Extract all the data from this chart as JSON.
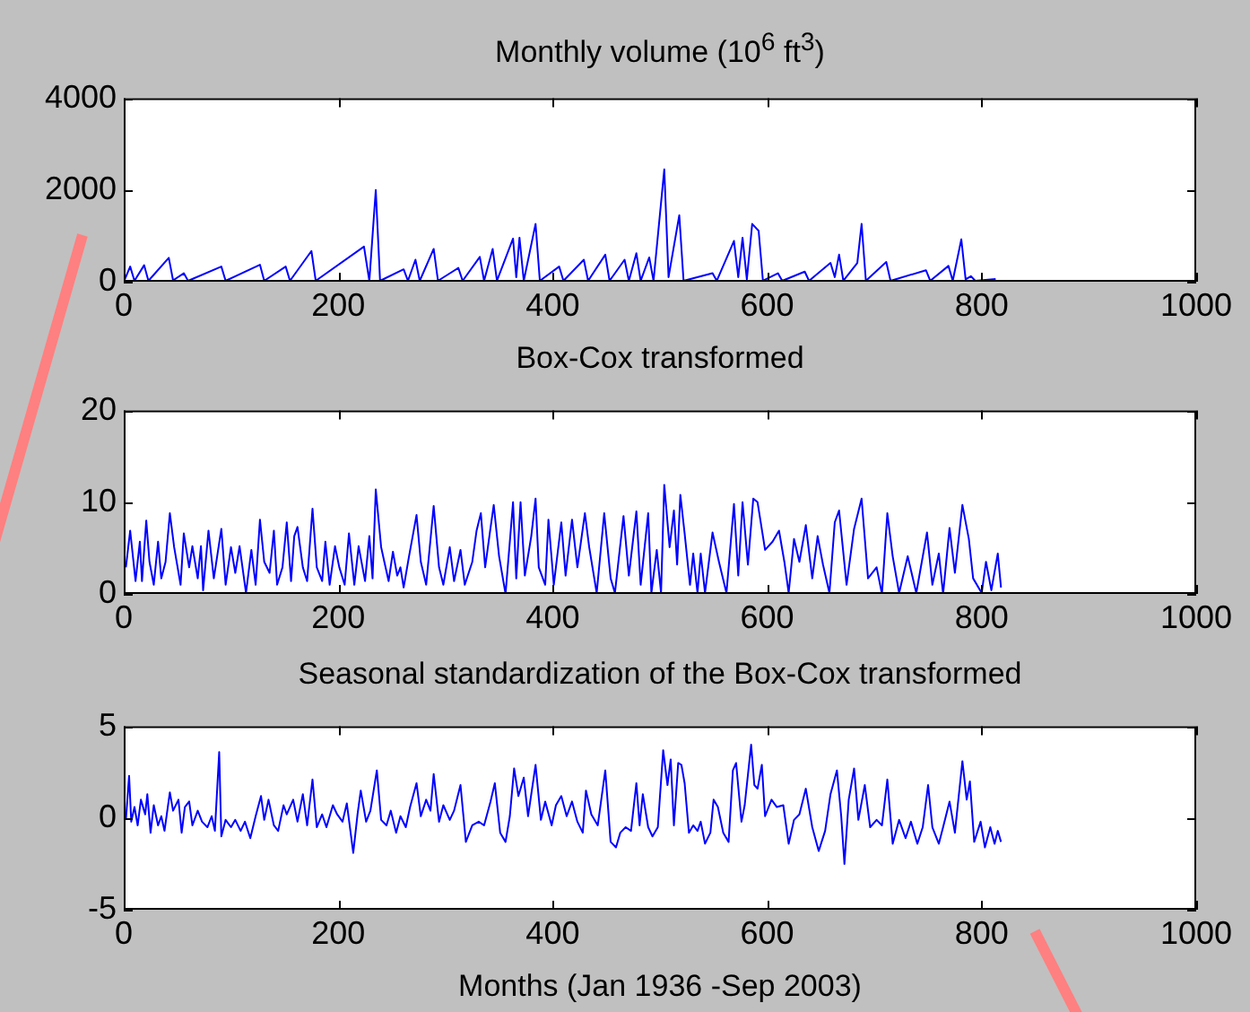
{
  "chart_data": [
    {
      "type": "line",
      "title": "Monthly volume (10$^{6}$ ft$^{3}$)",
      "color": "#0000ff",
      "xlim": [
        0,
        1000
      ],
      "xticks": [
        0,
        200,
        400,
        600,
        800,
        1000
      ],
      "ylim": [
        0,
        4000
      ],
      "yticks": [
        0,
        2000,
        4000
      ],
      "x": [
        1,
        6,
        10,
        19,
        23,
        42,
        46,
        56,
        60,
        91,
        95,
        127,
        131,
        151,
        155,
        175,
        179,
        224,
        229,
        235,
        239,
        261,
        265,
        272,
        276,
        289,
        293,
        312,
        316,
        332,
        336,
        344,
        348,
        363,
        366,
        369,
        373,
        384,
        388,
        406,
        410,
        429,
        433,
        449,
        453,
        467,
        471,
        478,
        482,
        490,
        494,
        504,
        508,
        518,
        522,
        549,
        553,
        569,
        573,
        577,
        581,
        586,
        592,
        596,
        610,
        614,
        635,
        639,
        659,
        663,
        667,
        671,
        684,
        688,
        692,
        711,
        715,
        748,
        752,
        769,
        773,
        781,
        785,
        790,
        794,
        813
      ],
      "values": [
        50,
        330,
        20,
        360,
        20,
        520,
        30,
        185,
        20,
        330,
        20,
        370,
        20,
        330,
        20,
        670,
        20,
        765,
        20,
        2000,
        20,
        270,
        20,
        480,
        20,
        715,
        20,
        300,
        20,
        540,
        20,
        715,
        20,
        940,
        100,
        960,
        20,
        1260,
        20,
        330,
        20,
        480,
        20,
        590,
        20,
        480,
        20,
        620,
        20,
        530,
        20,
        2450,
        100,
        1450,
        20,
        185,
        20,
        890,
        100,
        960,
        50,
        1260,
        1110,
        20,
        185,
        20,
        220,
        20,
        410,
        100,
        590,
        20,
        410,
        1260,
        20,
        430,
        20,
        250,
        20,
        345,
        20,
        925,
        50,
        120,
        20,
        60
      ]
    },
    {
      "type": "line",
      "title": "Box-Cox transformed",
      "color": "#0000ff",
      "xlim": [
        0,
        1000
      ],
      "xticks": [
        0,
        200,
        400,
        600,
        800,
        1000
      ],
      "ylim": [
        0,
        20
      ],
      "yticks": [
        0,
        10,
        20
      ],
      "x": [
        2,
        6,
        11,
        15,
        17,
        21,
        24,
        28,
        32,
        35,
        39,
        43,
        47,
        53,
        56,
        61,
        64,
        69,
        72,
        74,
        79,
        84,
        91,
        95,
        100,
        104,
        108,
        114,
        119,
        123,
        127,
        131,
        136,
        140,
        143,
        148,
        152,
        156,
        159,
        162,
        167,
        171,
        176,
        180,
        185,
        188,
        192,
        197,
        201,
        206,
        210,
        215,
        219,
        225,
        229,
        232,
        235,
        240,
        243,
        247,
        251,
        255,
        258,
        261,
        266,
        273,
        277,
        282,
        289,
        294,
        298,
        304,
        308,
        314,
        318,
        325,
        329,
        333,
        337,
        342,
        345,
        350,
        356,
        360,
        363,
        366,
        370,
        374,
        380,
        384,
        387,
        393,
        396,
        401,
        408,
        412,
        418,
        423,
        430,
        434,
        441,
        448,
        454,
        458,
        466,
        471,
        478,
        482,
        489,
        492,
        497,
        501,
        504,
        509,
        513,
        516,
        519,
        523,
        528,
        531,
        535,
        538,
        542,
        549,
        555,
        562,
        569,
        573,
        577,
        582,
        587,
        591,
        598,
        605,
        611,
        616,
        620,
        625,
        630,
        636,
        642,
        647,
        652,
        658,
        663,
        667,
        674,
        681,
        688,
        694,
        702,
        707,
        712,
        717,
        723,
        731,
        739,
        749,
        754,
        760,
        764,
        770,
        775,
        782,
        788,
        792,
        800,
        804,
        809,
        815,
        818
      ],
      "values": [
        2.9,
        6.9,
        1.4,
        5.7,
        1.4,
        8.0,
        3.5,
        1.0,
        5.7,
        1.7,
        3.5,
        8.8,
        5.1,
        1.0,
        6.6,
        2.9,
        5.2,
        1.7,
        5.2,
        0.4,
        6.9,
        1.7,
        7.1,
        1.0,
        5.1,
        2.3,
        5.2,
        0.1,
        4.8,
        1.0,
        8.1,
        3.5,
        2.3,
        6.9,
        1.0,
        2.9,
        7.8,
        1.4,
        6.3,
        7.3,
        2.9,
        1.4,
        9.3,
        2.9,
        1.4,
        5.7,
        1.0,
        5.2,
        2.9,
        1.0,
        6.6,
        1.0,
        5.2,
        1.4,
        6.3,
        1.7,
        11.4,
        5.1,
        3.5,
        1.4,
        4.6,
        2.0,
        2.9,
        0.7,
        4.1,
        8.6,
        3.5,
        1.0,
        9.6,
        2.9,
        1.0,
        5.1,
        1.4,
        4.8,
        1.0,
        3.5,
        6.9,
        8.8,
        2.9,
        7.2,
        9.7,
        4.1,
        0,
        5.7,
        10.0,
        1.7,
        10.0,
        2.0,
        6.3,
        10.4,
        2.9,
        1.0,
        8.1,
        1.0,
        7.8,
        2.0,
        8.1,
        2.9,
        8.8,
        5.1,
        0.1,
        8.8,
        1.7,
        0.1,
        8.5,
        2.0,
        9.0,
        1.0,
        8.8,
        0.1,
        4.8,
        0.1,
        11.9,
        5.1,
        9.1,
        3.2,
        10.8,
        6.6,
        1.0,
        4.4,
        0.1,
        4.4,
        0.1,
        6.7,
        3.5,
        0.1,
        9.8,
        2.0,
        10.0,
        3.2,
        10.4,
        10.0,
        4.8,
        5.7,
        6.9,
        3.5,
        0.1,
        6.0,
        3.5,
        7.5,
        1.7,
        6.3,
        3.2,
        0.1,
        7.8,
        9.1,
        1.0,
        7.1,
        10.4,
        1.7,
        2.9,
        0,
        8.8,
        4.1,
        0.1,
        4.1,
        0.1,
        6.7,
        1.0,
        4.4,
        0,
        7.2,
        2.3,
        9.7,
        6.0,
        1.7,
        0.1,
        3.5,
        0.4,
        4.4,
        0.7
      ]
    },
    {
      "type": "line",
      "title": "Seasonal standardization of the Box-Cox transformed",
      "xlabel": "Months (Jan 1936 -Sep 2003)",
      "color": "#0000ff",
      "xlim": [
        0,
        1000
      ],
      "xticks": [
        0,
        200,
        400,
        600,
        800,
        1000
      ],
      "ylim": [
        -5,
        5
      ],
      "yticks": [
        -5,
        0,
        5
      ],
      "x": [
        2,
        5,
        7,
        10,
        13,
        16,
        20,
        22,
        25,
        28,
        32,
        35,
        38,
        43,
        46,
        51,
        54,
        57,
        61,
        64,
        69,
        73,
        78,
        82,
        85,
        89,
        91,
        95,
        100,
        104,
        109,
        113,
        118,
        123,
        128,
        131,
        135,
        140,
        144,
        149,
        152,
        158,
        162,
        167,
        171,
        176,
        180,
        185,
        189,
        195,
        199,
        204,
        208,
        214,
        218,
        221,
        226,
        230,
        236,
        240,
        245,
        249,
        254,
        258,
        263,
        267,
        273,
        277,
        282,
        286,
        289,
        294,
        298,
        304,
        308,
        314,
        319,
        325,
        331,
        336,
        342,
        346,
        351,
        356,
        360,
        364,
        368,
        373,
        377,
        384,
        389,
        393,
        399,
        403,
        408,
        413,
        418,
        423,
        428,
        431,
        436,
        442,
        449,
        454,
        459,
        463,
        468,
        473,
        478,
        481,
        484,
        489,
        493,
        498,
        503,
        507,
        510,
        513,
        517,
        520,
        523,
        527,
        531,
        535,
        538,
        542,
        547,
        550,
        554,
        559,
        564,
        568,
        571,
        576,
        579,
        585,
        588,
        591,
        595,
        598,
        604,
        609,
        615,
        620,
        625,
        630,
        636,
        642,
        648,
        654,
        659,
        665,
        669,
        672,
        676,
        681,
        685,
        691,
        696,
        702,
        707,
        712,
        717,
        723,
        729,
        734,
        740,
        745,
        750,
        754,
        760,
        764,
        770,
        775,
        782,
        786,
        789,
        793,
        799,
        803,
        808,
        812,
        815,
        818
      ],
      "values": [
        -0.1,
        2.3,
        -0.2,
        0.6,
        -0.4,
        1.0,
        0.2,
        1.3,
        -0.8,
        0.7,
        -0.4,
        0.1,
        -0.7,
        1.4,
        0.4,
        1.0,
        -0.8,
        0.6,
        0.9,
        -0.4,
        0.4,
        -0.2,
        -0.5,
        0.1,
        -0.7,
        3.6,
        -1.0,
        -0.1,
        -0.5,
        -0.1,
        -0.7,
        -0.2,
        -1.1,
        0.1,
        1.2,
        -0.1,
        1.0,
        -0.4,
        -0.7,
        0.7,
        0.2,
        1.0,
        -0.2,
        1.3,
        -0.4,
        2.1,
        -0.5,
        0.2,
        -0.5,
        0.7,
        0.2,
        -0.2,
        0.8,
        -1.9,
        0.2,
        1.5,
        -0.2,
        0.4,
        2.6,
        -0.1,
        -0.4,
        0.4,
        -0.8,
        0.1,
        -0.5,
        0.6,
        1.9,
        0.1,
        1.0,
        0.4,
        2.4,
        -0.2,
        0.7,
        -0.1,
        0.4,
        1.8,
        -1.3,
        -0.4,
        -0.2,
        -0.4,
        0.9,
        1.9,
        -0.8,
        -1.3,
        0.1,
        2.7,
        1.2,
        2.2,
        0.1,
        2.9,
        -0.1,
        0.9,
        -0.4,
        0.7,
        1.2,
        0.1,
        0.9,
        -0.2,
        -0.8,
        1.5,
        0.2,
        -0.4,
        2.6,
        -1.3,
        -1.6,
        -0.8,
        -0.5,
        -0.7,
        1.9,
        -0.4,
        1.3,
        -0.5,
        -1.0,
        -0.5,
        3.7,
        1.8,
        3.2,
        -0.4,
        3.0,
        2.9,
        1.9,
        -0.8,
        -0.4,
        -0.7,
        -0.2,
        -1.4,
        -0.8,
        1.0,
        0.6,
        -0.8,
        -1.3,
        2.6,
        3.0,
        -0.2,
        0.7,
        4.0,
        1.8,
        1.6,
        2.9,
        0.1,
        1.0,
        0.6,
        0.7,
        -1.4,
        -0.1,
        0.2,
        1.6,
        -0.5,
        -1.8,
        -0.7,
        1.3,
        2.6,
        0.1,
        -2.5,
        1.0,
        2.7,
        -0.1,
        1.8,
        -0.5,
        -0.1,
        -0.4,
        2.1,
        -1.4,
        -0.1,
        -1.1,
        -0.2,
        -1.4,
        -0.5,
        1.8,
        -0.5,
        -1.4,
        -0.5,
        0.9,
        -0.8,
        3.1,
        1.0,
        2.0,
        -1.3,
        -0.2,
        -1.6,
        -0.5,
        -1.4,
        -0.7,
        -1.3
      ]
    }
  ]
}
